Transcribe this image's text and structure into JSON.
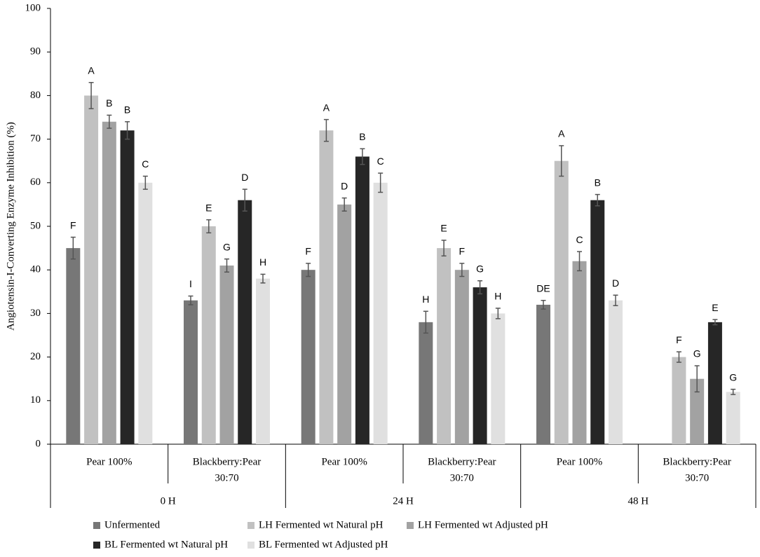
{
  "chart_data": {
    "type": "bar",
    "y_label": "Angiotensin-I-Converting Enzyme Inhibition (%)",
    "categories": [
      [
        "Pear 100%"
      ],
      [
        "Blackberry:Pear",
        "30:70"
      ],
      [
        "Pear 100%"
      ],
      [
        "Blackberry:Pear",
        "30:70"
      ],
      [
        "Pear 100%"
      ],
      [
        "Blackberry:Pear",
        "30:70"
      ]
    ],
    "groups": [
      "0 H",
      "24 H",
      "48 H"
    ],
    "ylim": [
      0,
      100
    ],
    "yticks": [
      0,
      10,
      20,
      30,
      40,
      50,
      60,
      70,
      80,
      90,
      100
    ],
    "grid": false,
    "legend": "bottom",
    "series": [
      {
        "name": "Unfermented",
        "color": "#777777",
        "values": [
          45,
          33,
          40,
          28,
          32,
          null
        ],
        "errors": [
          2.5,
          1,
          1.5,
          2.5,
          1,
          null
        ],
        "letters": [
          "F",
          "I",
          "F",
          "H",
          "DE",
          null
        ]
      },
      {
        "name": "LH Fermented wt Natural pH",
        "color": "#c1c1c1",
        "values": [
          80,
          50,
          72,
          45,
          65,
          20
        ],
        "errors": [
          3,
          1.5,
          2.5,
          1.8,
          3.5,
          1.2
        ],
        "letters": [
          "A",
          "E",
          "A",
          "E",
          "A",
          "F"
        ]
      },
      {
        "name": "LH Fermented wt Adjusted pH",
        "color": "#a2a2a2",
        "values": [
          74,
          41,
          55,
          40,
          42,
          15
        ],
        "errors": [
          1.5,
          1.5,
          1.5,
          1.5,
          2.2,
          3
        ],
        "letters": [
          "B",
          "G",
          "D",
          "F",
          "C",
          "G"
        ]
      },
      {
        "name": "BL Fermented wt Natural pH",
        "color": "#262626",
        "values": [
          72,
          56,
          66,
          36,
          56,
          28
        ],
        "errors": [
          2,
          2.5,
          1.8,
          1.5,
          1.3,
          0.6
        ],
        "letters": [
          "B",
          "D",
          "B",
          "G",
          "B",
          "E"
        ]
      },
      {
        "name": "BL Fermented wt Adjusted pH",
        "color": "#e0e0e0",
        "values": [
          60,
          38,
          60,
          30,
          33,
          12
        ],
        "errors": [
          1.5,
          1,
          2.2,
          1.2,
          1.2,
          0.6
        ],
        "letters": [
          "C",
          "H",
          "C",
          "H",
          "D",
          "G"
        ]
      }
    ]
  }
}
